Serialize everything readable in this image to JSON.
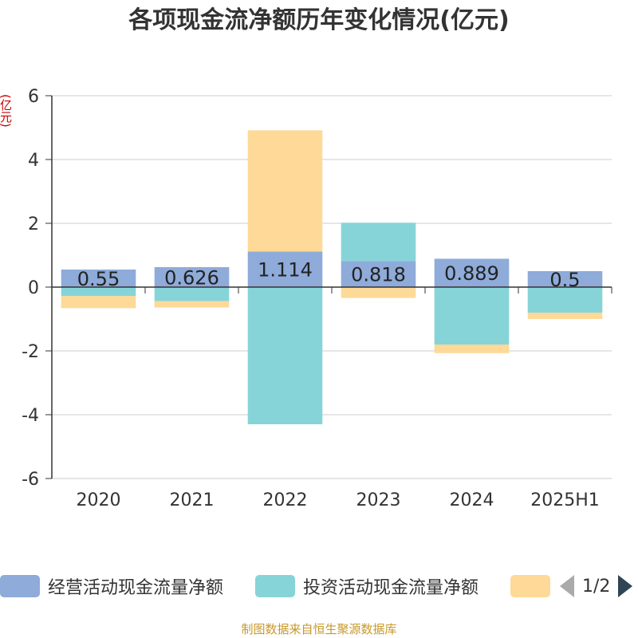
{
  "chart_data": {
    "type": "bar",
    "stacked": true,
    "title": "各项现金流净额历年变化情况(亿元)",
    "ylabel": "(亿元)",
    "categories": [
      "2020",
      "2021",
      "2022",
      "2023",
      "2024",
      "2025H1"
    ],
    "ylim": [
      -6,
      6
    ],
    "yticks": [
      6,
      4,
      2,
      0,
      -2,
      -4,
      -6
    ],
    "grid": true,
    "legend_position": "bottom",
    "series": [
      {
        "name": "经营活动现金流量净额",
        "color": "#8eabd9",
        "values": [
          0.55,
          0.626,
          1.114,
          0.818,
          0.889,
          0.5
        ],
        "labels": [
          "0.55",
          "0.626",
          "1.114",
          "0.818",
          "0.889",
          "0.5"
        ]
      },
      {
        "name": "投资活动现金流量净额",
        "color": "#86d4d8",
        "values": [
          -0.28,
          -0.44,
          -4.3,
          1.2,
          -1.8,
          -0.8
        ]
      },
      {
        "name": "",
        "color": "#fed997",
        "values": [
          -0.38,
          -0.2,
          3.8,
          -0.34,
          -0.27,
          -0.2
        ]
      }
    ]
  },
  "legend": {
    "items": [
      {
        "label": "经营活动现金流量净额",
        "color": "#8eabd9"
      },
      {
        "label": "投资活动现金流量净额",
        "color": "#86d4d8"
      },
      {
        "label": "",
        "color": "#fed997"
      }
    ],
    "page": "1/2"
  },
  "source": "制图数据来自恒生聚源数据库"
}
